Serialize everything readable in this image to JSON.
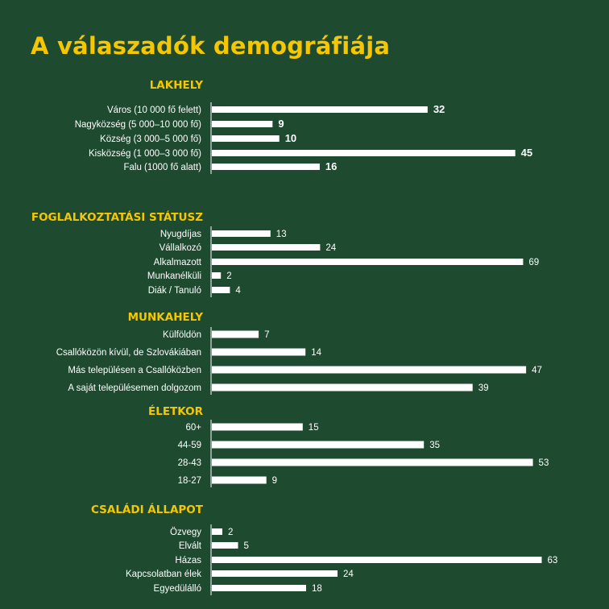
{
  "title": "A válaszadók demográfiája",
  "colors": {
    "background": "#1e4a30",
    "accent": "#f6c700",
    "bar": "#ffffff"
  },
  "chart_data": [
    {
      "type": "bar",
      "orientation": "horizontal",
      "title": "LAKHELY",
      "categories": [
        "Város (10 000 fő felett)",
        "Nagyközség (5 000–10 000 fő)",
        "Község (3 000–5 000 fő)",
        "Kisközség (1 000–3 000 fő)",
        "Falu (1000 fő alatt)"
      ],
      "values": [
        32,
        9,
        10,
        45,
        16
      ]
    },
    {
      "type": "bar",
      "orientation": "horizontal",
      "title": "FOGLALKOZTATÁSI STÁTUSZ",
      "categories": [
        "Nyugdíjas",
        "Vállalkozó",
        "Alkalmazott",
        "Munkanélküli",
        "Diák / Tanuló"
      ],
      "values": [
        13,
        24,
        69,
        2,
        4
      ]
    },
    {
      "type": "bar",
      "orientation": "horizontal",
      "title": "MUNKAHELY",
      "categories": [
        "Külföldön",
        "Csallóközön kívül, de Szlovákiában",
        "Más településen a Csallóközben",
        "A saját településemen dolgozom"
      ],
      "values": [
        7,
        14,
        47,
        39
      ]
    },
    {
      "type": "bar",
      "orientation": "horizontal",
      "title": "ÉLETKOR",
      "categories": [
        "60+",
        "44-59",
        "28-43",
        "18-27"
      ],
      "values": [
        15,
        35,
        53,
        9
      ]
    },
    {
      "type": "bar",
      "orientation": "horizontal",
      "title": "CSALÁDI ÁLLAPOT",
      "categories": [
        "Özvegy",
        "Elvált",
        "Házas",
        "Kapcsolatban élek",
        "Egyedülálló"
      ],
      "values": [
        2,
        5,
        63,
        24,
        18
      ]
    }
  ]
}
